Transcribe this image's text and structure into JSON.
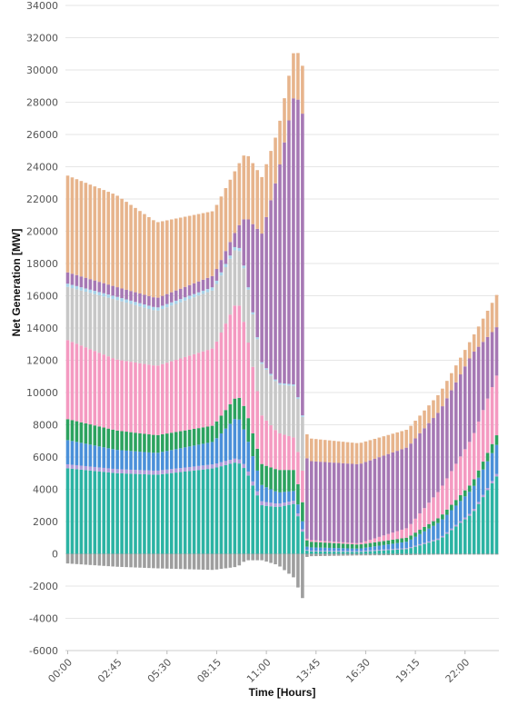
{
  "chart_data": {
    "type": "bar",
    "stacked": true,
    "xlabel": "Time [Hours]",
    "ylabel": "Net Generation [MW]",
    "ylim": [
      -6000,
      34000
    ],
    "yticks": [
      -6000,
      -4000,
      -2000,
      0,
      2000,
      4000,
      6000,
      8000,
      10000,
      12000,
      14000,
      16000,
      18000,
      20000,
      22000,
      24000,
      26000,
      28000,
      30000,
      32000,
      34000
    ],
    "xtick_labels": [
      "00:00",
      "02:45",
      "05:30",
      "08:15",
      "11:00",
      "13:45",
      "16:30",
      "19:15",
      "22:00"
    ],
    "xtick_every": 11,
    "grid": true,
    "interval_minutes": 15,
    "x_knots": [
      0,
      12,
      22,
      36,
      42,
      44,
      48,
      52,
      56,
      58,
      59,
      60,
      72,
      84,
      92,
      100,
      106
    ],
    "series": [
      {
        "color": "#2bb3a3",
        "values": [
          5300,
          5000,
          4900,
          5300,
          5700,
          5200,
          3000,
          2900,
          3100,
          1400,
          200,
          150,
          120,
          300,
          900,
          2500,
          4800
        ]
      },
      {
        "color": "#b19cd9",
        "values": [
          250,
          250,
          250,
          250,
          250,
          250,
          250,
          200,
          200,
          150,
          50,
          50,
          50,
          60,
          80,
          120,
          150
        ]
      },
      {
        "color": "#4a90d9",
        "values": [
          1500,
          1200,
          1100,
          1400,
          2600,
          2000,
          1000,
          700,
          600,
          500,
          200,
          200,
          150,
          400,
          1000,
          1400,
          1800
        ]
      },
      {
        "color": "#2ca25f",
        "values": [
          1300,
          1200,
          1100,
          1000,
          1300,
          1500,
          1300,
          1400,
          1300,
          1200,
          400,
          350,
          250,
          250,
          300,
          400,
          600
        ]
      },
      {
        "color": "#f49ac1",
        "values": [
          4900,
          4400,
          4300,
          4800,
          5900,
          5000,
          3000,
          2300,
          2000,
          2000,
          100,
          100,
          80,
          600,
          1700,
          2800,
          3700
        ]
      },
      {
        "color": "#c7c7c7",
        "values": [
          3300,
          3700,
          3400,
          3600,
          3400,
          3300,
          3200,
          3000,
          3200,
          3400,
          0,
          0,
          0,
          0,
          0,
          0,
          0
        ]
      },
      {
        "color": "#a7d2e8",
        "values": [
          200,
          200,
          200,
          200,
          200,
          150,
          100,
          100,
          100,
          100,
          0,
          0,
          0,
          0,
          0,
          0,
          0
        ]
      },
      {
        "color": "#a678b4",
        "values": [
          700,
          600,
          600,
          700,
          900,
          3500,
          8000,
          13000,
          18000,
          19000,
          5000,
          4900,
          4900,
          5000,
          4900,
          5200,
          3000
        ]
      },
      {
        "color": "#e7b48c",
        "values": [
          6000,
          5700,
          4700,
          4000,
          3800,
          4000,
          3500,
          2700,
          2800,
          3000,
          1500,
          1400,
          1300,
          1100,
          1100,
          1000,
          2000
        ]
      },
      {
        "color": "#9e9e9e",
        "values": [
          -600,
          -800,
          -900,
          -1000,
          -800,
          -400,
          -400,
          -700,
          -1500,
          -2800,
          -200,
          -150,
          -100,
          -80,
          -50,
          -50,
          -50
        ]
      }
    ]
  }
}
